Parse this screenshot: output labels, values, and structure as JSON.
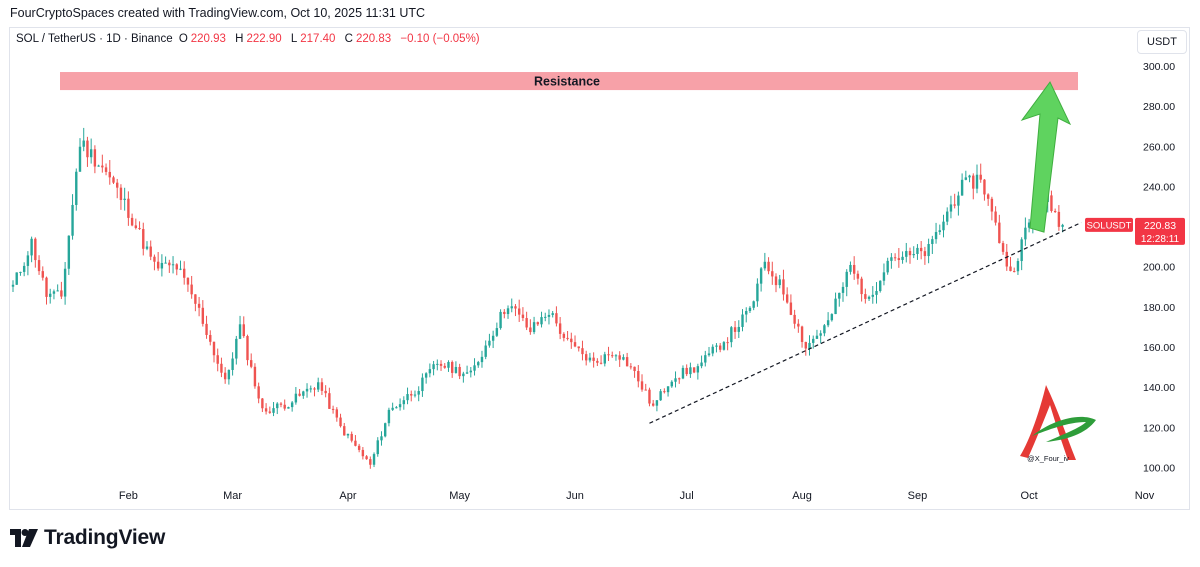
{
  "caption": "FourCryptoSpaces created with TradingView.com, Oct 10, 2025 11:31 UTC",
  "symbol": {
    "name": "SOL / TetherUS · 1D · Binance",
    "o_label": "O",
    "o_value": "220.93",
    "h_label": "H",
    "h_value": "222.90",
    "l_label": "L",
    "l_value": "217.40",
    "c_label": "C",
    "c_value": "220.83",
    "change": "−0.10 (−0.05%)"
  },
  "currency": "USDT",
  "price_tag": {
    "symbol": "SOLUSDT",
    "price": "220.83",
    "countdown": "12:28:11"
  },
  "watermark": "@X_Four_iv",
  "brand": "TradingView",
  "colors": {
    "up": "#26a69a",
    "down": "#ef5350",
    "resistance": "#f7a1a8",
    "arrow": "#5fd35f",
    "price_tag": "#f23645",
    "trendline": "#131722"
  },
  "chart_data": {
    "type": "candlestick",
    "title": "SOL / TetherUS · 1D · Binance",
    "ylim": [
      90,
      310
    ],
    "y_ticks": [
      "300.00",
      "280.00",
      "260.00",
      "240.00",
      "220.00",
      "200.00",
      "180.00",
      "160.00",
      "140.00",
      "120.00",
      "100.00"
    ],
    "x_ticks": [
      "Feb",
      "Mar",
      "Apr",
      "May",
      "Jun",
      "Jul",
      "Aug",
      "Sep",
      "Oct",
      "Nov"
    ],
    "series": [
      {
        "name": "SOLUSDT",
        "approx_close_path": [
          {
            "x": "2025-01-01",
            "y": 190
          },
          {
            "x": "2025-01-06",
            "y": 212
          },
          {
            "x": "2025-01-10",
            "y": 186
          },
          {
            "x": "2025-01-14",
            "y": 185
          },
          {
            "x": "2025-01-19",
            "y": 262
          },
          {
            "x": "2025-01-25",
            "y": 250
          },
          {
            "x": "2025-02-01",
            "y": 228
          },
          {
            "x": "2025-02-08",
            "y": 200
          },
          {
            "x": "2025-02-14",
            "y": 200
          },
          {
            "x": "2025-02-20",
            "y": 178
          },
          {
            "x": "2025-02-27",
            "y": 142
          },
          {
            "x": "2025-03-03",
            "y": 170
          },
          {
            "x": "2025-03-09",
            "y": 128
          },
          {
            "x": "2025-03-16",
            "y": 132
          },
          {
            "x": "2025-03-24",
            "y": 142
          },
          {
            "x": "2025-03-30",
            "y": 120
          },
          {
            "x": "2025-04-07",
            "y": 101
          },
          {
            "x": "2025-04-12",
            "y": 128
          },
          {
            "x": "2025-04-20",
            "y": 140
          },
          {
            "x": "2025-04-25",
            "y": 152
          },
          {
            "x": "2025-05-04",
            "y": 146
          },
          {
            "x": "2025-05-10",
            "y": 168
          },
          {
            "x": "2025-05-14",
            "y": 182
          },
          {
            "x": "2025-05-20",
            "y": 168
          },
          {
            "x": "2025-05-25",
            "y": 178
          },
          {
            "x": "2025-05-30",
            "y": 162
          },
          {
            "x": "2025-06-06",
            "y": 152
          },
          {
            "x": "2025-06-12",
            "y": 158
          },
          {
            "x": "2025-06-16",
            "y": 150
          },
          {
            "x": "2025-06-22",
            "y": 130
          },
          {
            "x": "2025-06-27",
            "y": 145
          },
          {
            "x": "2025-07-04",
            "y": 150
          },
          {
            "x": "2025-07-12",
            "y": 165
          },
          {
            "x": "2025-07-18",
            "y": 178
          },
          {
            "x": "2025-07-22",
            "y": 202
          },
          {
            "x": "2025-07-27",
            "y": 188
          },
          {
            "x": "2025-08-02",
            "y": 160
          },
          {
            "x": "2025-08-08",
            "y": 172
          },
          {
            "x": "2025-08-14",
            "y": 200
          },
          {
            "x": "2025-08-19",
            "y": 182
          },
          {
            "x": "2025-08-24",
            "y": 205
          },
          {
            "x": "2025-08-30",
            "y": 205
          },
          {
            "x": "2025-09-04",
            "y": 208
          },
          {
            "x": "2025-09-12",
            "y": 238
          },
          {
            "x": "2025-09-18",
            "y": 245
          },
          {
            "x": "2025-09-22",
            "y": 220
          },
          {
            "x": "2025-09-26",
            "y": 196
          },
          {
            "x": "2025-10-01",
            "y": 222
          },
          {
            "x": "2025-10-06",
            "y": 232
          },
          {
            "x": "2025-10-10",
            "y": 220.83
          }
        ]
      }
    ],
    "resistance": {
      "label": "Resistance",
      "low": 288,
      "high": 297
    },
    "trendline": {
      "from": {
        "x": "2025-06-21",
        "y": 122
      },
      "to": {
        "x": "2025-10-15",
        "y": 222
      }
    },
    "arrow_target": 292,
    "last_price": 220.83,
    "grid": false,
    "legend": "none"
  }
}
